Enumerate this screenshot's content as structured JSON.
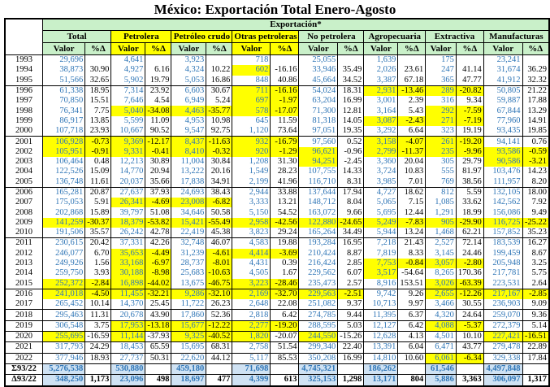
{
  "title": "México: Exportación Total Enero-Agosto",
  "colors": {
    "header_green": "#c9f0c9",
    "highlight_yellow": "#ffff00",
    "totals_blue_bg": "#cfe2f3",
    "value_text_blue": "#2e75b6"
  },
  "chart_data": {
    "type": "table",
    "title": "México: Exportación Total Enero-Agosto",
    "band_header": "Exportación*",
    "sub_headers": [
      "Valor",
      "%Δ"
    ],
    "groups": [
      {
        "label": "Total",
        "label_bg": "green",
        "sub_bg": "green"
      },
      {
        "label": "Petrolera",
        "label_bg": "yellow",
        "sub_bg": "yellow"
      },
      {
        "label": "Petróleo crudo",
        "label_bg": "yellow",
        "sub_bg": "green"
      },
      {
        "label": "Otras petroleras",
        "label_bg": "yellow",
        "sub_bg": "yellow"
      },
      {
        "label": "No petrolera",
        "label_bg": "green",
        "sub_bg": "green"
      },
      {
        "label": "Agropecuaria",
        "label_bg": "green",
        "sub_bg": "green"
      },
      {
        "label": "Extractiva",
        "label_bg": "green",
        "sub_bg": "green"
      },
      {
        "label": "Manufacturas",
        "label_bg": "green",
        "sub_bg": "green"
      }
    ],
    "rows": [
      {
        "year": "1993",
        "kind": "data",
        "sep": false,
        "hl": "0000000000000000",
        "cells": [
          "29,696",
          "",
          "4,641",
          "",
          "3,923",
          "",
          "718",
          "",
          "25,055",
          "",
          "1,639",
          "",
          "175",
          "",
          "23,241",
          ""
        ]
      },
      {
        "year": "1994",
        "kind": "data",
        "sep": false,
        "hl": "0000001000000000",
        "cells": [
          "38,873",
          "30.90",
          "4,927",
          "6.16",
          "4,324",
          "10.22",
          "602",
          "-16.16",
          "33,946",
          "35.49",
          "2,026",
          "23.61",
          "247",
          "41.14",
          "31,674",
          "36.29"
        ]
      },
      {
        "year": "1995",
        "kind": "data",
        "sep": false,
        "hl": "0000000000000000",
        "cells": [
          "51,566",
          "32.65",
          "5,902",
          "19.79",
          "5,053",
          "16.86",
          "848",
          "40.86",
          "45,664",
          "34.52",
          "3,387",
          "67.18",
          "365",
          "47.77",
          "41,912",
          "32.32"
        ]
      },
      {
        "year": "1996",
        "kind": "data",
        "sep": true,
        "hl": "0000001100111100",
        "cells": [
          "61,338",
          "18.95",
          "7,314",
          "23.92",
          "6,603",
          "30.67",
          "711",
          "-16.16",
          "54,024",
          "18.31",
          "2,931",
          "-13.46",
          "289",
          "-20.82",
          "50,805",
          "21.22"
        ]
      },
      {
        "year": "1997",
        "kind": "data",
        "sep": false,
        "hl": "0000001100000000",
        "cells": [
          "70,850",
          "15.51",
          "7,646",
          "4.54",
          "6,949",
          "5.24",
          "697",
          "-1.97",
          "63,204",
          "16.99",
          "3,001",
          "2.39",
          "316",
          "9.34",
          "59,887",
          "17.88"
        ]
      },
      {
        "year": "1998",
        "kind": "data",
        "sep": false,
        "hl": "0011111100001100",
        "cells": [
          "76,341",
          "7.75",
          "5,040",
          "-34.08",
          "4,463",
          "-35.77",
          "578",
          "-17.07",
          "71,300",
          "12.81",
          "3,164",
          "5.43",
          "292",
          "-7.59",
          "67,844",
          "13.29"
        ]
      },
      {
        "year": "1999",
        "kind": "data",
        "sep": false,
        "hl": "0000000000111100",
        "cells": [
          "86,917",
          "13.85",
          "5,599",
          "11.09",
          "4,953",
          "10.98",
          "645",
          "11.59",
          "81,318",
          "14.05",
          "3,087",
          "-2.43",
          "271",
          "-7.19",
          "77,960",
          "14.91"
        ]
      },
      {
        "year": "2000",
        "kind": "data",
        "sep": false,
        "hl": "0000000000000000",
        "cells": [
          "107,718",
          "23.93",
          "10,667",
          "90.52",
          "9,547",
          "92.75",
          "1,120",
          "73.64",
          "97,051",
          "19.35",
          "3,292",
          "6.64",
          "323",
          "19.19",
          "93,435",
          "19.85"
        ]
      },
      {
        "year": "2001",
        "kind": "data",
        "sep": true,
        "hl": "1111111100111100",
        "cells": [
          "106,928",
          "-0.73",
          "9,369",
          "-12.17",
          "8,437",
          "-11.63",
          "932",
          "-16.79",
          "97,560",
          "0.52",
          "3,158",
          "-4.07",
          "261",
          "-19.20",
          "94,141",
          "0.76"
        ]
      },
      {
        "year": "2002",
        "kind": "data",
        "sep": false,
        "hl": "1111111110111111",
        "cells": [
          "105,951",
          "-0.91",
          "9,331",
          "-0.41",
          "8,410",
          "-0.32",
          "920",
          "-1.29",
          "96,621",
          "-0.96",
          "2,799",
          "-11.37",
          "235",
          "-9.96",
          "93,586",
          "-0.59"
        ]
      },
      {
        "year": "2003",
        "kind": "data",
        "sep": false,
        "hl": "0000000010000011",
        "cells": [
          "106,464",
          "0.48",
          "12,213",
          "30.89",
          "11,004",
          "30.84",
          "1,208",
          "31.30",
          "94,251",
          "-2.45",
          "3,360",
          "20.04",
          "305",
          "29.79",
          "90,586",
          "-3.21"
        ]
      },
      {
        "year": "2004",
        "kind": "data",
        "sep": false,
        "hl": "0000000000000000",
        "cells": [
          "122,526",
          "15.09",
          "14,770",
          "20.94",
          "13,222",
          "20.16",
          "1,549",
          "28.23",
          "107,755",
          "14.33",
          "3,724",
          "10.83",
          "555",
          "81.97",
          "103,476",
          "14.23"
        ]
      },
      {
        "year": "2005",
        "kind": "data",
        "sep": false,
        "hl": "0000000000000000",
        "cells": [
          "136,748",
          "11.61",
          "20,037",
          "35.66",
          "17,838",
          "34.91",
          "2,199",
          "41.96",
          "116,710",
          "8.31",
          "3,985",
          "7.01",
          "769",
          "38.56",
          "111,957",
          "8.20"
        ]
      },
      {
        "year": "2006",
        "kind": "data",
        "sep": true,
        "hl": "0000000000000000",
        "cells": [
          "165,281",
          "20.87",
          "27,637",
          "37.93",
          "24,693",
          "38.43",
          "2,944",
          "33.88",
          "137,644",
          "17.94",
          "4,727",
          "18.62",
          "812",
          "5.59",
          "132,105",
          "18.00"
        ]
      },
      {
        "year": "2007",
        "kind": "data",
        "sep": false,
        "hl": "0011110000000000",
        "cells": [
          "175,053",
          "5.91",
          "26,341",
          "-4.69",
          "23,008",
          "-6.82",
          "3,333",
          "13.21",
          "148,712",
          "8.04",
          "5,065",
          "7.15",
          "1,085",
          "33.62",
          "142,562",
          "7.92"
        ]
      },
      {
        "year": "2008",
        "kind": "data",
        "sep": false,
        "hl": "0000000000000000",
        "cells": [
          "202,868",
          "15.89",
          "39,797",
          "51.08",
          "34,646",
          "50.58",
          "5,150",
          "54.52",
          "163,072",
          "9.66",
          "5,695",
          "12.44",
          "1,291",
          "18.99",
          "156,086",
          "9.49"
        ]
      },
      {
        "year": "2009",
        "kind": "data",
        "sep": false,
        "hl": "1111111111111111",
        "cells": [
          "141,259",
          "-30.37",
          "18,379",
          "-53.82",
          "15,421",
          "-55.49",
          "2,958",
          "-42.56",
          "122,880",
          "-24.65",
          "5,249",
          "-7.83",
          "905",
          "-29.90",
          "116,725",
          "-25.22"
        ]
      },
      {
        "year": "2010",
        "kind": "data",
        "sep": false,
        "hl": "0000000000000000",
        "cells": [
          "191,506",
          "35.57",
          "26,242",
          "42.78",
          "22,419",
          "45.38",
          "3,823",
          "29.24",
          "165,264",
          "34.49",
          "5,944",
          "13.24",
          "1,468",
          "62.21",
          "157,852",
          "35.23"
        ]
      },
      {
        "year": "2011",
        "kind": "data",
        "sep": true,
        "hl": "0000000000000000",
        "cells": [
          "230,615",
          "20.42",
          "37,331",
          "42.26",
          "32,748",
          "46.07",
          "4,583",
          "19.88",
          "193,284",
          "16.95",
          "7,218",
          "21.43",
          "2,527",
          "72.14",
          "183,539",
          "16.27"
        ]
      },
      {
        "year": "2012",
        "kind": "data",
        "sep": false,
        "hl": "0011011100000000",
        "cells": [
          "246,077",
          "6.70",
          "35,653",
          "-4.49",
          "31,239",
          "-4.61",
          "4,414",
          "-3.69",
          "210,424",
          "8.87",
          "7,819",
          "8.33",
          "3,145",
          "24.46",
          "199,459",
          "8.67"
        ]
      },
      {
        "year": "2013",
        "kind": "data",
        "sep": false,
        "hl": "0011010000111100",
        "cells": [
          "249,926",
          "1.56",
          "33,168",
          "-6.97",
          "28,737",
          "-8.01",
          "4,431",
          "0.39",
          "216,424",
          "2.85",
          "7,753",
          "-0.84",
          "3,057",
          "-2.80",
          "205,948",
          "3.25"
        ]
      },
      {
        "year": "2014",
        "kind": "data",
        "sep": false,
        "hl": "0011010000100000",
        "cells": [
          "259,750",
          "3.93",
          "30,188",
          "-8.98",
          "25,683",
          "-10.63",
          "4,505",
          "1.67",
          "229,562",
          "6.07",
          "3,517",
          "-54.64",
          "8,265",
          "170.36",
          "217,781",
          "5.75"
        ]
      },
      {
        "year": "2015",
        "kind": "data",
        "sep": false,
        "hl": "1111011100001100",
        "cells": [
          "252,372",
          "-2.84",
          "16,898",
          "-44.02",
          "13,675",
          "-46.75",
          "3,223",
          "-28.46",
          "235,473",
          "2.57",
          "8,916",
          "153.51",
          "3,026",
          "-63.39",
          "223,531",
          "2.64"
        ]
      },
      {
        "year": "2016",
        "kind": "data",
        "sep": true,
        "hl": "1111111111001111",
        "cells": [
          "241,018",
          "-4.50",
          "11,455",
          "-32.21",
          "9,286",
          "-32.10",
          "2,169",
          "-32.70",
          "229,563",
          "-2.51",
          "9,742",
          "9.26",
          "2,655",
          "-12.26",
          "217,167",
          "-2.85"
        ]
      },
      {
        "year": "2017",
        "kind": "data",
        "sep": false,
        "hl": "0000000000000000",
        "cells": [
          "265,452",
          "10.14",
          "14,370",
          "25.45",
          "11,722",
          "26.23",
          "2,648",
          "22.08",
          "251,082",
          "9.37",
          "10,713",
          "9.97",
          "3,466",
          "30.55",
          "236,903",
          "9.09"
        ]
      },
      {
        "year": "2018",
        "kind": "data",
        "sep": true,
        "hl": "0000000000000000",
        "cells": [
          "295,463",
          "11.31",
          "20,678",
          "43.90",
          "17,860",
          "52.36",
          "2,818",
          "6.42",
          "274,785",
          "9.44",
          "11,395",
          "6.37",
          "4,320",
          "24.64",
          "259,070",
          "9.36"
        ]
      },
      {
        "year": "2019",
        "kind": "data",
        "sep": true,
        "hl": "0011111100001100",
        "cells": [
          "306,548",
          "3.75",
          "17,953",
          "-13.18",
          "15,677",
          "-12.22",
          "2,277",
          "-19.20",
          "288,595",
          "5.03",
          "12,127",
          "6.42",
          "4,088",
          "-5.37",
          "272,379",
          "5.14"
        ]
      },
      {
        "year": "2020",
        "kind": "data",
        "sep": true,
        "hl": "1010111010000011",
        "cells": [
          "255,695",
          "-16.59",
          "11,144",
          "-37.93",
          "9,325",
          "-40.52",
          "1,820",
          "-20.07",
          "244,550",
          "-15.26",
          "12,628",
          "4.13",
          "4,501",
          "10.10",
          "227,421",
          "-16.51"
        ]
      },
      {
        "year": "2021",
        "kind": "data",
        "sep": true,
        "hl": "0000000000000000",
        "cells": [
          "317,793",
          "24.29",
          "18,453",
          "65.59",
          "15,695",
          "68.31",
          "2,758",
          "51.54",
          "299,340",
          "22.40",
          "13,391",
          "6.04",
          "6,471",
          "43.77",
          "279,478",
          "22.89"
        ]
      },
      {
        "year": "2022",
        "kind": "data",
        "sep": true,
        "hl": "0000000000001100",
        "cells": [
          "377,946",
          "18.93",
          "27,737",
          "50.31",
          "22,620",
          "44.12",
          "5,117",
          "85.53",
          "350,208",
          "16.99",
          "14,810",
          "10.60",
          "6,061",
          "-6.34",
          "329,338",
          "17.84"
        ]
      },
      {
        "year": "Σ93/22",
        "kind": "sum",
        "sep": true,
        "hl": "0000000000000000",
        "cells": [
          "5,276,538",
          "",
          "530,880",
          "",
          "459,180",
          "",
          "71,698",
          "",
          "4,745,321",
          "",
          "186,262",
          "",
          "61,546",
          "",
          "4,497,848",
          ""
        ]
      },
      {
        "year": "Δ93/22",
        "kind": "delta",
        "sep": true,
        "hl": "0000000000000000",
        "cells": [
          "348,250",
          "1,173",
          "23,096",
          "498",
          "18,697",
          "477",
          "4,399",
          "613",
          "325,153",
          "1,298",
          "13,171",
          "804",
          "5,886",
          "3,363",
          "306,097",
          "1,317"
        ]
      }
    ]
  }
}
